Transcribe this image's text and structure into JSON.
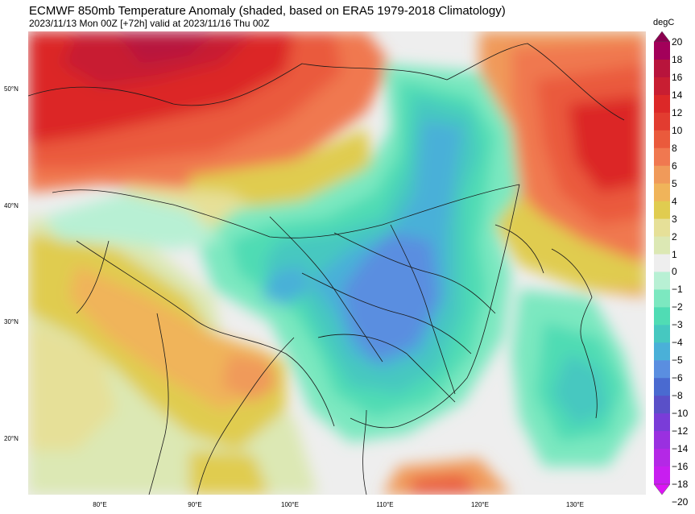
{
  "title": "ECMWF 850mb Temperature Anomaly (shaded, based on ERA5 1979-2018 Climatology)",
  "subtitle": "2023/11/13 Mon 00Z [+72h] valid at 2023/11/16 Thu 00Z",
  "map": {
    "projection": "lat-lon",
    "lon_range": [
      72,
      137
    ],
    "lat_range": [
      15,
      55
    ],
    "lat_ticks": [
      "50°N",
      "40°N",
      "30°N",
      "20°N"
    ],
    "lon_ticks": [
      "80°E",
      "90°E",
      "100°E",
      "110°E",
      "120°E",
      "130°E"
    ],
    "lat_values": [
      50,
      40,
      30,
      20
    ],
    "lon_values": [
      80,
      90,
      100,
      110,
      120,
      130
    ],
    "anomaly_regions": [
      {
        "name": "warm-northwest",
        "level": 14
      },
      {
        "name": "warm-northeast",
        "level": 12
      },
      {
        "name": "warm-south-asia",
        "level": 4
      },
      {
        "name": "cold-central-china",
        "level": -6
      },
      {
        "name": "cold-ocean-east",
        "level": -4
      },
      {
        "name": "warm-bay-of-bengal",
        "level": 3
      }
    ]
  },
  "colorbar": {
    "unit": "degC",
    "levels": [
      "20",
      "18",
      "16",
      "14",
      "12",
      "10",
      "8",
      "6",
      "5",
      "4",
      "3",
      "2",
      "1",
      "0",
      "−1",
      "−2",
      "−3",
      "−4",
      "−5",
      "−6",
      "−8",
      "−10",
      "−12",
      "−14",
      "−16",
      "−18",
      "−20"
    ],
    "colors": [
      "#8b0050",
      "#a3005a",
      "#b8143c",
      "#c81e32",
      "#dc2828",
      "#e23c30",
      "#ea5a3c",
      "#f07850",
      "#f09a5a",
      "#f0b45a",
      "#e0cc50",
      "#e6e098",
      "#dce8b4",
      "#eeeeee",
      "#b8f0d4",
      "#7ce8c0",
      "#50dcb4",
      "#46c8c0",
      "#4ab0d8",
      "#5a8ee0",
      "#4a6ad0",
      "#5a50c8",
      "#7a3cd8",
      "#9a30e0",
      "#b428e6",
      "#c81ef0",
      "#dc14f5"
    ]
  }
}
